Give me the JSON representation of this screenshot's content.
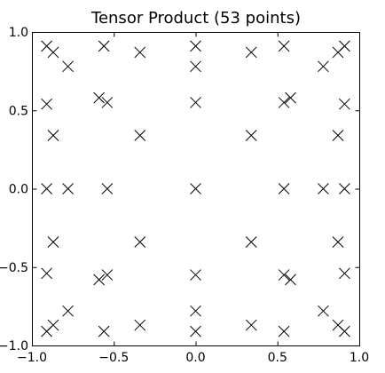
{
  "chart_data": {
    "type": "scatter",
    "title": "Tensor Product (53 points)",
    "xlabel": "",
    "ylabel": "",
    "xlim": [
      -1.0,
      1.0
    ],
    "ylim": [
      -1.0,
      1.0
    ],
    "xticks": [
      -1.0,
      -0.5,
      0.0,
      0.5,
      1.0
    ],
    "yticks": [
      -1.0,
      -0.5,
      0.0,
      0.5,
      1.0
    ],
    "xtick_labels": [
      "−1.0",
      "−0.5",
      "0.0",
      "0.5",
      "1.0"
    ],
    "ytick_labels": [
      "−1.0",
      "−0.5",
      "0.0",
      "0.5",
      "1.0"
    ],
    "grid": false,
    "marker": "x",
    "marker_color": "#000000",
    "points": [
      [
        -0.91,
        0.91
      ],
      [
        -0.87,
        0.87
      ],
      [
        -0.78,
        0.78
      ],
      [
        -0.56,
        0.91
      ],
      [
        -0.34,
        0.87
      ],
      [
        0.0,
        0.91
      ],
      [
        0.0,
        0.78
      ],
      [
        0.34,
        0.87
      ],
      [
        0.54,
        0.91
      ],
      [
        0.78,
        0.78
      ],
      [
        0.87,
        0.87
      ],
      [
        0.91,
        0.91
      ],
      [
        -0.91,
        0.54
      ],
      [
        -0.59,
        0.58
      ],
      [
        -0.54,
        0.55
      ],
      [
        0.0,
        0.55
      ],
      [
        0.54,
        0.55
      ],
      [
        0.58,
        0.58
      ],
      [
        0.91,
        0.54
      ],
      [
        -0.87,
        0.34
      ],
      [
        -0.34,
        0.34
      ],
      [
        0.34,
        0.34
      ],
      [
        0.87,
        0.34
      ],
      [
        -0.91,
        0.0
      ],
      [
        -0.78,
        0.0
      ],
      [
        -0.54,
        0.0
      ],
      [
        0.0,
        0.0
      ],
      [
        0.54,
        0.0
      ],
      [
        0.78,
        0.0
      ],
      [
        0.91,
        0.0
      ],
      [
        -0.87,
        -0.34
      ],
      [
        -0.34,
        -0.34
      ],
      [
        0.34,
        -0.34
      ],
      [
        0.87,
        -0.34
      ],
      [
        -0.91,
        -0.54
      ],
      [
        -0.59,
        -0.58
      ],
      [
        -0.54,
        -0.55
      ],
      [
        0.0,
        -0.55
      ],
      [
        0.54,
        -0.55
      ],
      [
        0.58,
        -0.58
      ],
      [
        0.91,
        -0.54
      ],
      [
        -0.91,
        -0.91
      ],
      [
        -0.87,
        -0.87
      ],
      [
        -0.78,
        -0.78
      ],
      [
        -0.56,
        -0.91
      ],
      [
        -0.34,
        -0.87
      ],
      [
        0.0,
        -0.91
      ],
      [
        0.0,
        -0.78
      ],
      [
        0.34,
        -0.87
      ],
      [
        0.54,
        -0.91
      ],
      [
        0.78,
        -0.78
      ],
      [
        0.87,
        -0.87
      ],
      [
        0.91,
        -0.91
      ]
    ]
  }
}
